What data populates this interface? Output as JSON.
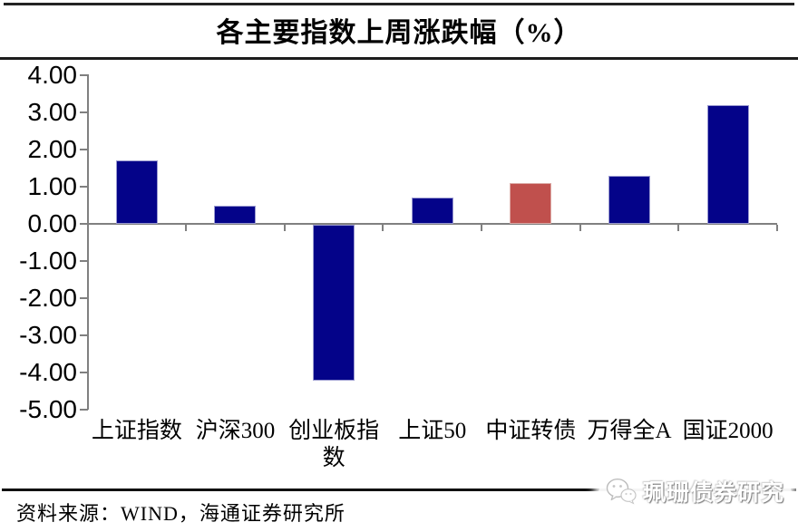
{
  "title": "各主要指数上周涨跌幅（%）",
  "source_line": "资料来源：WIND，海通证券研究所",
  "watermark": {
    "label": "珮珊债券研究",
    "icon": "wechat-icon"
  },
  "colors": {
    "bar_navy": "#040389",
    "bar_red": "#c0504d",
    "axis_gray": "#808080",
    "rule_black": "#1c1c1c"
  },
  "chart_data": {
    "type": "bar",
    "title": "各主要指数上周涨跌幅（%）",
    "categories": [
      "上证指数",
      "沪深300",
      "创业板指数",
      "上证50",
      "中证转债",
      "万得全A",
      "国证2000"
    ],
    "values": [
      1.7,
      0.5,
      -4.2,
      0.7,
      1.1,
      1.3,
      3.2
    ],
    "x_tick_labels": [
      "上证指数",
      "沪深300",
      "创业板指\n数",
      "上证50",
      "中证转债",
      "万得全A",
      "国证2000"
    ],
    "bar_colors": [
      "#040389",
      "#040389",
      "#040389",
      "#040389",
      "#c0504d",
      "#040389",
      "#040389"
    ],
    "bar_border_colors": [
      "#9a9ad0",
      "#9a9ad0",
      "#9a9ad0",
      "#9a9ad0",
      "#dcaaa6",
      "#9a9ad0",
      "#9a9ad0"
    ],
    "y_ticks": [
      "4.00",
      "3.00",
      "2.00",
      "1.00",
      "0.00",
      "-1.00",
      "-2.00",
      "-3.00",
      "-4.00",
      "-5.00"
    ],
    "ylim": [
      -5,
      4
    ],
    "y_step": 1,
    "xlabel": "",
    "ylabel": "",
    "grid": false,
    "legend": null
  }
}
